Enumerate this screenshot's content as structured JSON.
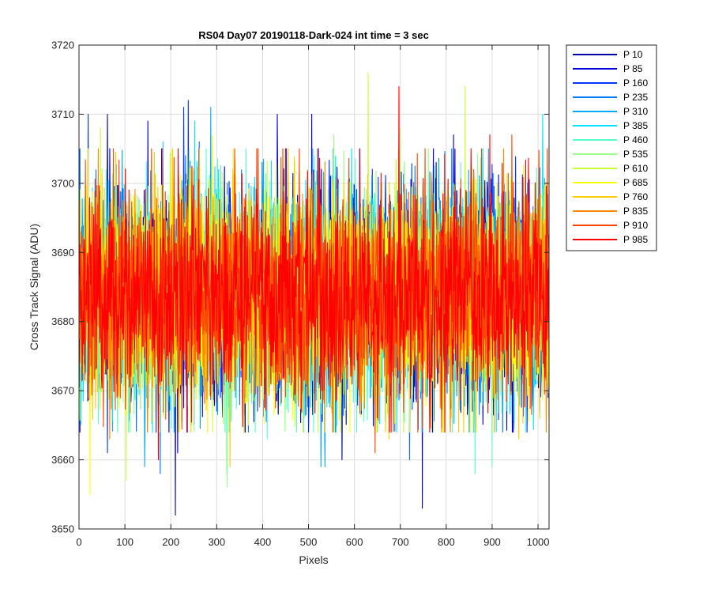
{
  "chart_data": {
    "type": "line",
    "title": "RS04 Day07 20190118-Dark-024 int time = 3 sec",
    "xlabel": "Pixels",
    "ylabel": "Cross Track Signal (ADU)",
    "xlim": [
      0,
      1024
    ],
    "ylim": [
      3650,
      3720
    ],
    "xticks": [
      0,
      100,
      200,
      300,
      400,
      500,
      600,
      700,
      800,
      900,
      1000
    ],
    "yticks": [
      3650,
      3660,
      3670,
      3680,
      3690,
      3700,
      3710,
      3720
    ],
    "grid": true,
    "legend_position": "outside-top-right",
    "series_mean": 3684,
    "series": [
      {
        "name": "P 10",
        "color": "#0000AA",
        "spikes": [
          [
            210,
            3652
          ],
          [
            748,
            3653
          ],
          [
            573,
            3660
          ],
          [
            62,
            3710
          ]
        ]
      },
      {
        "name": "P 85",
        "color": "#0000DD",
        "spikes": [
          [
            150,
            3709
          ],
          [
            432,
            3710
          ],
          [
            507,
            3710
          ],
          [
            816,
            3707
          ],
          [
            215,
            3661
          ]
        ]
      },
      {
        "name": "P 160",
        "color": "#0033FF",
        "spikes": [
          [
            20,
            3710
          ],
          [
            238,
            3712
          ],
          [
            228,
            3711
          ],
          [
            62,
            3661
          ]
        ]
      },
      {
        "name": "P 235",
        "color": "#0077FF",
        "spikes": [
          [
            177,
            3658
          ],
          [
            232,
            3704
          ],
          [
            262,
            3706
          ],
          [
            720,
            3660
          ]
        ]
      },
      {
        "name": "P 310",
        "color": "#00AAFF",
        "spikes": [
          [
            287,
            3711
          ],
          [
            527,
            3659
          ],
          [
            536,
            3659
          ],
          [
            143,
            3659
          ]
        ]
      },
      {
        "name": "P 385",
        "color": "#00E5FF",
        "spikes": [
          [
            183,
            3706
          ],
          [
            252,
            3709
          ],
          [
            1010,
            3710
          ],
          [
            560,
            3664
          ]
        ]
      },
      {
        "name": "P 460",
        "color": "#55FFCC",
        "spikes": [
          [
            322,
            3658
          ],
          [
            863,
            3658
          ],
          [
            900,
            3659
          ],
          [
            410,
            3663
          ]
        ]
      },
      {
        "name": "P 535",
        "color": "#99FF88",
        "spikes": [
          [
            323,
            3656
          ],
          [
            555,
            3707
          ],
          [
            700,
            3708
          ]
        ]
      },
      {
        "name": "P 610",
        "color": "#CCFF33",
        "spikes": [
          [
            630,
            3716
          ],
          [
            841,
            3714
          ],
          [
            103,
            3657
          ],
          [
            47,
            3708
          ]
        ]
      },
      {
        "name": "P 685",
        "color": "#FFFF00",
        "spikes": [
          [
            24,
            3655
          ],
          [
            290,
            3707
          ],
          [
            470,
            3703
          ]
        ]
      },
      {
        "name": "P 760",
        "color": "#FFCC00",
        "spikes": [
          [
            329,
            3659
          ],
          [
            675,
            3663
          ],
          [
            958,
            3663
          ]
        ]
      },
      {
        "name": "P 835",
        "color": "#FF8800",
        "spikes": [
          [
            67,
            3663
          ],
          [
            790,
            3664
          ],
          [
            42,
            3705
          ]
        ]
      },
      {
        "name": "P 910",
        "color": "#FF4400",
        "spikes": [
          [
            943,
            3707
          ],
          [
            645,
            3661
          ],
          [
            860,
            3702
          ]
        ]
      },
      {
        "name": "P 985",
        "color": "#FF0000",
        "spikes": [
          [
            697,
            3714
          ],
          [
            173,
            3660
          ],
          [
            895,
            3707
          ]
        ]
      }
    ]
  }
}
